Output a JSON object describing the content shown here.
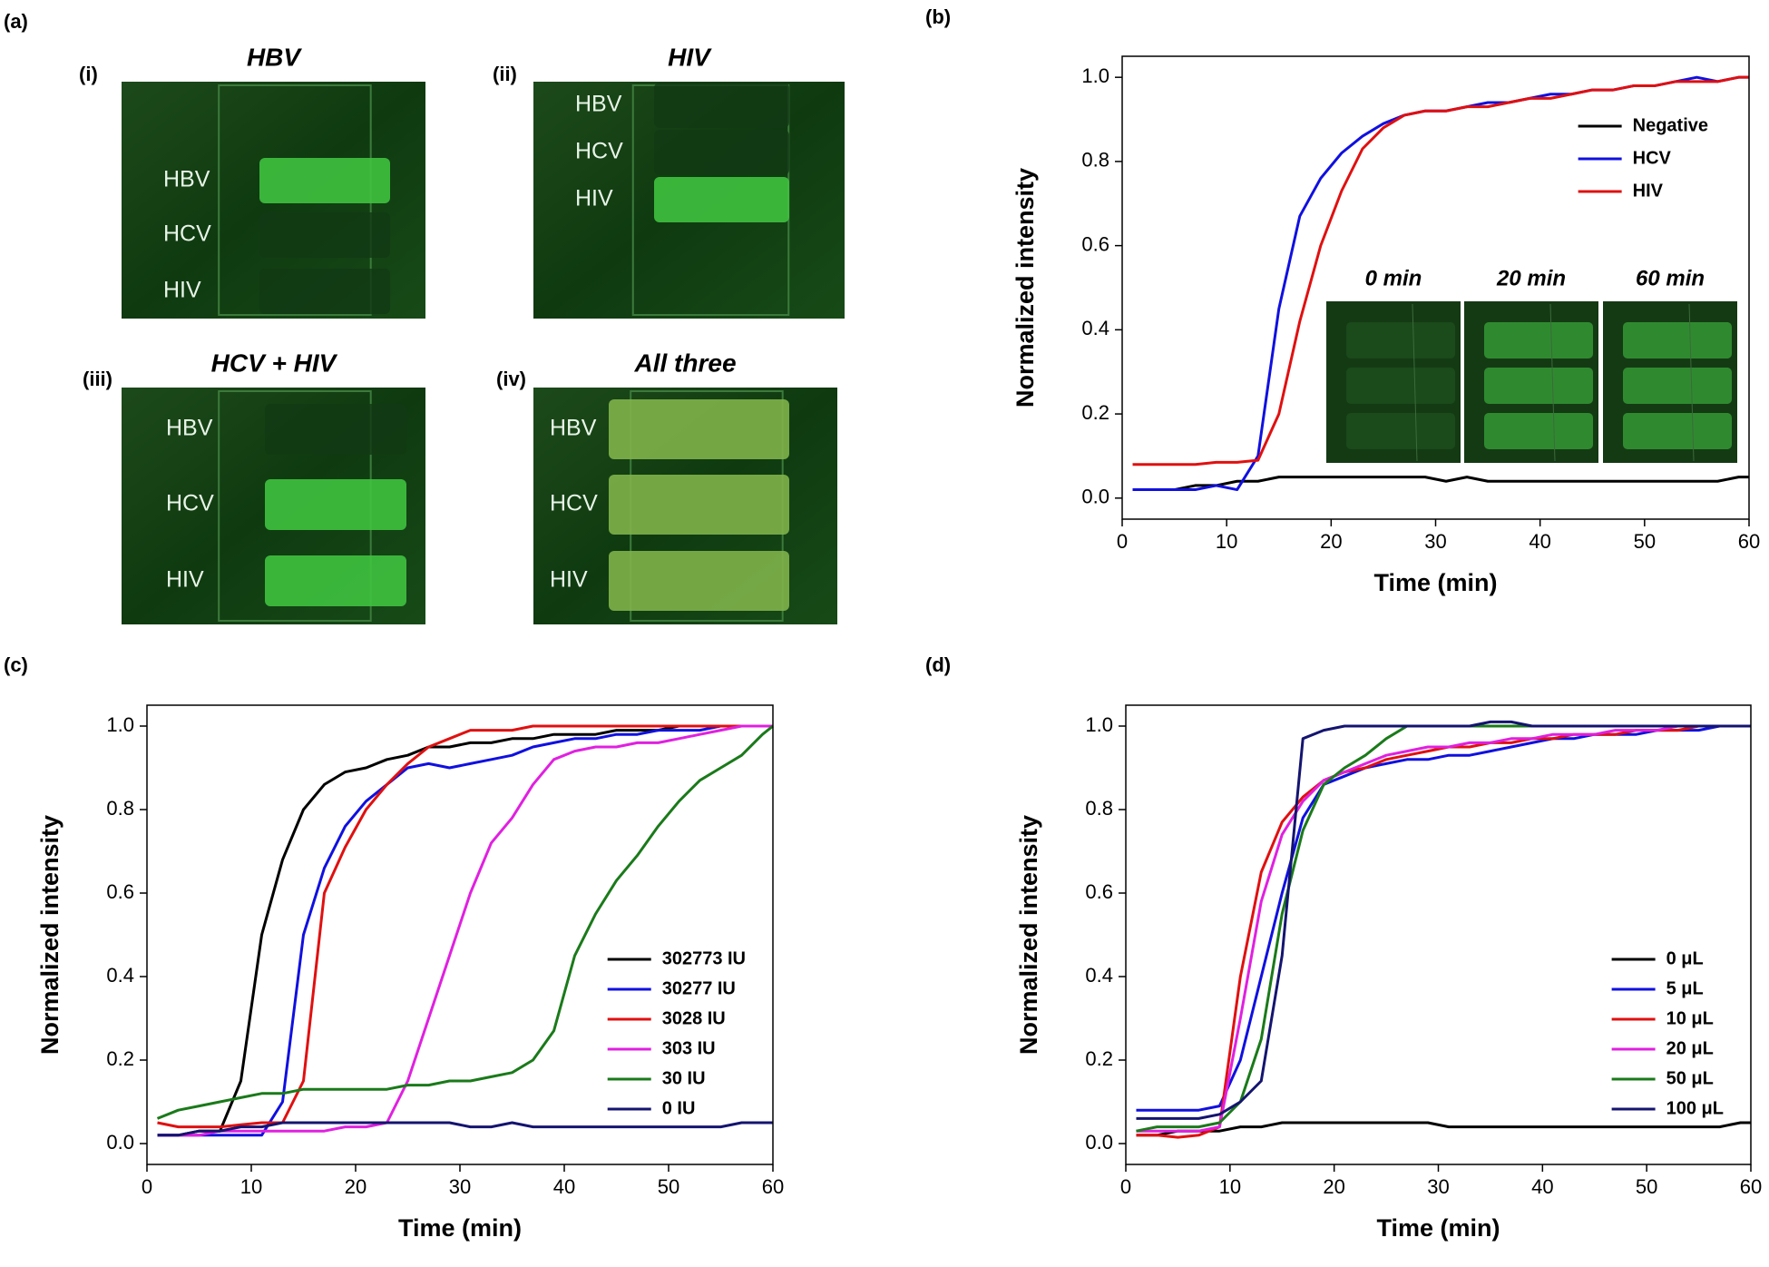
{
  "image_panel": {
    "panel": "(a)",
    "images": [
      {
        "label": "(i)",
        "title": "HBV",
        "lanes": [
          "HBV",
          "HCV",
          "HIV"
        ]
      },
      {
        "label": "(ii)",
        "title": "HIV",
        "lanes": [
          "HBV",
          "HCV",
          "HIV"
        ]
      },
      {
        "label": "(iii)",
        "title": "HCV + HIV",
        "lanes": [
          "HBV",
          "HCV",
          "HIV"
        ]
      },
      {
        "label": "(iv)",
        "title": "All three",
        "lanes": [
          "HBV",
          "HCV",
          "HIV"
        ]
      }
    ]
  },
  "chart_data": [
    {
      "type": "line",
      "panel": "(b)",
      "x_label": "Time (min)",
      "y_label": "Normalized intensity",
      "xlim": [
        0,
        60
      ],
      "xticks": [
        0,
        10,
        20,
        30,
        40,
        50,
        60
      ],
      "ylim": [
        -0.05,
        1.05
      ],
      "yticks": [
        {
          "value": 0,
          "label": "0.0"
        },
        0.2,
        0.4,
        0.6,
        0.8,
        {
          "value": 1,
          "label": "1.0"
        }
      ],
      "legend": "upper right",
      "inset_labels": [
        "0 min",
        "20 min",
        "60 min"
      ],
      "x": [
        1,
        3,
        5,
        7,
        9,
        11,
        13,
        15,
        17,
        19,
        21,
        23,
        25,
        27,
        29,
        31,
        33,
        35,
        37,
        39,
        41,
        43,
        45,
        47,
        49,
        51,
        53,
        55,
        57,
        59,
        60
      ],
      "series": [
        {
          "name": "Negative",
          "color": "#000000",
          "values": [
            0.02,
            0.02,
            0.02,
            0.03,
            0.03,
            0.04,
            0.04,
            0.05,
            0.05,
            0.05,
            0.05,
            0.05,
            0.05,
            0.05,
            0.05,
            0.04,
            0.05,
            0.04,
            0.04,
            0.04,
            0.04,
            0.04,
            0.04,
            0.04,
            0.04,
            0.04,
            0.04,
            0.04,
            0.04,
            0.05,
            0.05
          ]
        },
        {
          "name": "HCV",
          "color": "#1010e0",
          "values": [
            0.02,
            0.02,
            0.02,
            0.02,
            0.03,
            0.02,
            0.1,
            0.45,
            0.67,
            0.76,
            0.82,
            0.86,
            0.89,
            0.91,
            0.92,
            0.92,
            0.93,
            0.94,
            0.94,
            0.95,
            0.96,
            0.96,
            0.97,
            0.97,
            0.98,
            0.98,
            0.99,
            1.0,
            0.99,
            1.0,
            1.0
          ]
        },
        {
          "name": "HIV",
          "color": "#e01010",
          "values": [
            0.08,
            0.08,
            0.08,
            0.08,
            0.085,
            0.085,
            0.09,
            0.2,
            0.42,
            0.6,
            0.73,
            0.83,
            0.88,
            0.91,
            0.92,
            0.92,
            0.93,
            0.93,
            0.94,
            0.95,
            0.95,
            0.96,
            0.97,
            0.97,
            0.98,
            0.98,
            0.99,
            0.99,
            0.99,
            1.0,
            1.0
          ]
        }
      ]
    },
    {
      "type": "line",
      "panel": "(c)",
      "x_label": "Time (min)",
      "y_label": "Normalized intensity",
      "xlim": [
        0,
        60
      ],
      "xticks": [
        0,
        10,
        20,
        30,
        40,
        50,
        60
      ],
      "ylim": [
        -0.05,
        1.05
      ],
      "yticks": [
        {
          "value": 0,
          "label": "0.0"
        },
        0.2,
        0.4,
        0.6,
        0.8,
        {
          "value": 1,
          "label": "1.0"
        }
      ],
      "legend": "lower right",
      "x": [
        1,
        3,
        5,
        7,
        9,
        11,
        13,
        15,
        17,
        19,
        21,
        23,
        25,
        27,
        29,
        31,
        33,
        35,
        37,
        39,
        41,
        43,
        45,
        47,
        49,
        51,
        53,
        55,
        57,
        59,
        60
      ],
      "series": [
        {
          "name": "302773 IU",
          "color": "#000000",
          "values": [
            0.02,
            0.02,
            0.03,
            0.03,
            0.15,
            0.5,
            0.68,
            0.8,
            0.86,
            0.89,
            0.9,
            0.92,
            0.93,
            0.95,
            0.95,
            0.96,
            0.96,
            0.97,
            0.97,
            0.98,
            0.98,
            0.98,
            0.99,
            0.99,
            0.99,
            1.0,
            1.0,
            1.0,
            1.0,
            1.0,
            1.0
          ]
        },
        {
          "name": "30277 IU",
          "color": "#1010e0",
          "values": [
            0.02,
            0.02,
            0.02,
            0.02,
            0.02,
            0.02,
            0.1,
            0.5,
            0.66,
            0.76,
            0.82,
            0.86,
            0.9,
            0.91,
            0.9,
            0.91,
            0.92,
            0.93,
            0.95,
            0.96,
            0.97,
            0.97,
            0.98,
            0.98,
            0.99,
            0.99,
            0.99,
            1.0,
            1.0,
            1.0,
            1.0
          ]
        },
        {
          "name": "3028 IU",
          "color": "#e01010",
          "values": [
            0.05,
            0.04,
            0.04,
            0.04,
            0.045,
            0.05,
            0.05,
            0.15,
            0.6,
            0.71,
            0.8,
            0.86,
            0.91,
            0.95,
            0.97,
            0.99,
            0.99,
            0.99,
            1.0,
            1.0,
            1.0,
            1.0,
            1.0,
            1.0,
            1.0,
            1.0,
            1.0,
            1.0,
            1.0,
            1.0,
            1.0
          ]
        },
        {
          "name": "303 IU",
          "color": "#e020e0",
          "values": [
            0.02,
            0.02,
            0.02,
            0.03,
            0.03,
            0.03,
            0.03,
            0.03,
            0.03,
            0.04,
            0.04,
            0.05,
            0.15,
            0.3,
            0.45,
            0.6,
            0.72,
            0.78,
            0.86,
            0.92,
            0.94,
            0.95,
            0.95,
            0.96,
            0.96,
            0.97,
            0.98,
            0.99,
            1.0,
            1.0,
            1.0
          ]
        },
        {
          "name": "30 IU",
          "color": "#1a7a1a",
          "values": [
            0.06,
            0.08,
            0.09,
            0.1,
            0.11,
            0.12,
            0.12,
            0.13,
            0.13,
            0.13,
            0.13,
            0.13,
            0.14,
            0.14,
            0.15,
            0.15,
            0.16,
            0.17,
            0.2,
            0.27,
            0.45,
            0.55,
            0.63,
            0.69,
            0.76,
            0.82,
            0.87,
            0.9,
            0.93,
            0.98,
            1.0
          ]
        },
        {
          "name": "0 IU",
          "color": "#141470",
          "values": [
            0.02,
            0.02,
            0.03,
            0.03,
            0.04,
            0.04,
            0.05,
            0.05,
            0.05,
            0.05,
            0.05,
            0.05,
            0.05,
            0.05,
            0.05,
            0.04,
            0.04,
            0.05,
            0.04,
            0.04,
            0.04,
            0.04,
            0.04,
            0.04,
            0.04,
            0.04,
            0.04,
            0.04,
            0.05,
            0.05,
            0.05
          ]
        }
      ]
    },
    {
      "type": "line",
      "panel": "(d)",
      "x_label": "Time (min)",
      "y_label": "Normalized intensity",
      "xlim": [
        0,
        60
      ],
      "xticks": [
        0,
        10,
        20,
        30,
        40,
        50,
        60
      ],
      "ylim": [
        -0.05,
        1.05
      ],
      "yticks": [
        {
          "value": 0,
          "label": "0.0"
        },
        0.2,
        0.4,
        0.6,
        0.8,
        {
          "value": 1,
          "label": "1.0"
        }
      ],
      "legend": "lower right",
      "x": [
        1,
        3,
        5,
        7,
        9,
        11,
        13,
        15,
        17,
        19,
        21,
        23,
        25,
        27,
        29,
        31,
        33,
        35,
        37,
        39,
        41,
        43,
        45,
        47,
        49,
        51,
        53,
        55,
        57,
        59,
        60
      ],
      "series": [
        {
          "name": "0 μL",
          "color": "#000000",
          "values": [
            0.02,
            0.02,
            0.03,
            0.03,
            0.03,
            0.04,
            0.04,
            0.05,
            0.05,
            0.05,
            0.05,
            0.05,
            0.05,
            0.05,
            0.05,
            0.04,
            0.04,
            0.04,
            0.04,
            0.04,
            0.04,
            0.04,
            0.04,
            0.04,
            0.04,
            0.04,
            0.04,
            0.04,
            0.04,
            0.05,
            0.05
          ]
        },
        {
          "name": "5 μL",
          "color": "#1010e0",
          "values": [
            0.08,
            0.08,
            0.08,
            0.08,
            0.09,
            0.2,
            0.4,
            0.6,
            0.78,
            0.86,
            0.88,
            0.9,
            0.91,
            0.92,
            0.92,
            0.93,
            0.93,
            0.94,
            0.95,
            0.96,
            0.97,
            0.97,
            0.98,
            0.98,
            0.98,
            0.99,
            0.99,
            0.99,
            1.0,
            1.0,
            1.0
          ]
        },
        {
          "name": "10 μL",
          "color": "#e01010",
          "values": [
            0.02,
            0.02,
            0.015,
            0.02,
            0.04,
            0.4,
            0.65,
            0.77,
            0.83,
            0.87,
            0.89,
            0.9,
            0.92,
            0.93,
            0.94,
            0.95,
            0.95,
            0.96,
            0.96,
            0.97,
            0.97,
            0.98,
            0.98,
            0.98,
            0.99,
            0.99,
            0.99,
            1.0,
            1.0,
            1.0,
            1.0
          ]
        },
        {
          "name": "20 μL",
          "color": "#e020e0",
          "values": [
            0.03,
            0.03,
            0.03,
            0.03,
            0.04,
            0.3,
            0.58,
            0.74,
            0.82,
            0.87,
            0.89,
            0.91,
            0.93,
            0.94,
            0.95,
            0.95,
            0.96,
            0.96,
            0.97,
            0.97,
            0.98,
            0.98,
            0.98,
            0.99,
            0.99,
            0.99,
            1.0,
            1.0,
            1.0,
            1.0,
            1.0
          ]
        },
        {
          "name": "50 μL",
          "color": "#1a7a1a",
          "values": [
            0.03,
            0.04,
            0.04,
            0.04,
            0.05,
            0.1,
            0.25,
            0.55,
            0.75,
            0.86,
            0.9,
            0.93,
            0.97,
            1.0,
            1.0,
            1.0,
            1.0,
            1.0,
            1.0,
            1.0,
            1.0,
            1.0,
            1.0,
            1.0,
            1.0,
            1.0,
            1.0,
            1.0,
            1.0,
            1.0,
            1.0
          ]
        },
        {
          "name": "100 μL",
          "color": "#141470",
          "values": [
            0.06,
            0.06,
            0.06,
            0.06,
            0.07,
            0.1,
            0.15,
            0.45,
            0.97,
            0.99,
            1.0,
            1.0,
            1.0,
            1.0,
            1.0,
            1.0,
            1.0,
            1.01,
            1.01,
            1.0,
            1.0,
            1.0,
            1.0,
            1.0,
            1.0,
            1.0,
            1.0,
            1.0,
            1.0,
            1.0,
            1.0
          ]
        }
      ]
    }
  ]
}
